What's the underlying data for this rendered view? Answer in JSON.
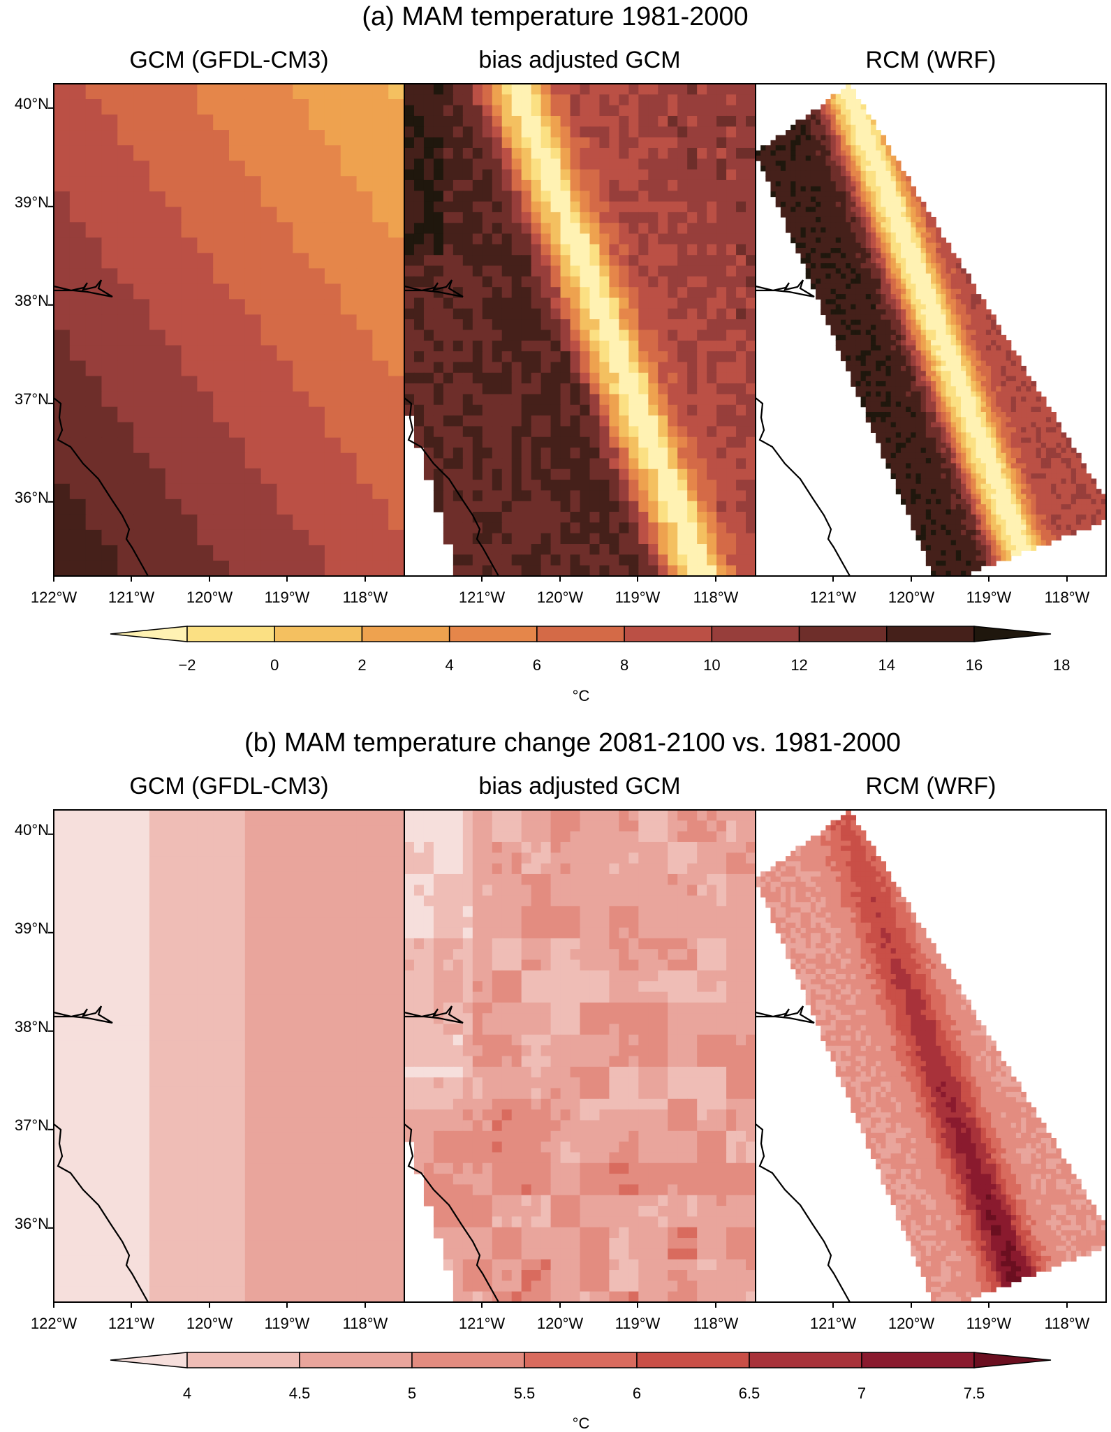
{
  "figure_panels": [
    {
      "title": "(a) MAM temperature 1981-2000",
      "subplot_titles": [
        "GCM (GFDL-CM3)",
        "bias adjusted GCM",
        "RCM (WRF)"
      ],
      "colorbar": {
        "ticks": [
          "−2",
          "0",
          "2",
          "4",
          "6",
          "8",
          "10",
          "12",
          "14",
          "16",
          "18"
        ],
        "unit": "°C",
        "colors": [
          "#fff2b3",
          "#fbe083",
          "#f4c060",
          "#eea24f",
          "#e5864a",
          "#d46a47",
          "#bb5045",
          "#973e3b",
          "#6e2e2a",
          "#45201a",
          "#1f170d"
        ]
      }
    },
    {
      "title": "(b) MAM temperature change 2081-2100 vs. 1981-2000",
      "subplot_titles": [
        "GCM (GFDL-CM3)",
        "bias adjusted GCM",
        "RCM (WRF)"
      ],
      "colorbar": {
        "ticks": [
          "4",
          "4.5",
          "5",
          "5.5",
          "6",
          "6.5",
          "7",
          "7.5"
        ],
        "unit": "°C",
        "colors": [
          "#f6dfdc",
          "#efbdb6",
          "#e9a59c",
          "#e38c80",
          "#d96b5e",
          "#c94f47",
          "#a8323a",
          "#8a1a2e",
          "#6b0f20"
        ]
      }
    }
  ],
  "axes": {
    "lat_labels": [
      "40°N",
      "39°N",
      "38°N",
      "37°N",
      "36°N"
    ],
    "lon_labels_first": [
      "122°W",
      "121°W",
      "120°W",
      "119°W",
      "118°W"
    ],
    "lon_labels": [
      "121°W",
      "120°W",
      "119°W",
      "118°W"
    ]
  },
  "chart_data": [
    {
      "type": "heatmap",
      "title": "(a) MAM temperature 1981-2000",
      "subplots": [
        "GCM (GFDL-CM3)",
        "bias adjusted GCM",
        "RCM (WRF)"
      ],
      "lat_range": [
        35.2,
        40.2
      ],
      "lon_range": [
        -122,
        -117.5
      ],
      "colorbar_levels": [
        -2,
        0,
        2,
        4,
        6,
        8,
        10,
        12,
        14,
        16,
        18
      ],
      "colorbar_unit": "°C"
    },
    {
      "type": "heatmap",
      "title": "(b) MAM temperature change 2081-2100 vs. 1981-2000",
      "subplots": [
        "GCM (GFDL-CM3)",
        "bias adjusted GCM",
        "RCM (WRF)"
      ],
      "lat_range": [
        35.2,
        40.2
      ],
      "lon_range": [
        -122,
        -117.5
      ],
      "colorbar_levels": [
        4,
        4.5,
        5,
        5.5,
        6,
        6.5,
        7,
        7.5
      ],
      "colorbar_unit": "°C"
    }
  ]
}
